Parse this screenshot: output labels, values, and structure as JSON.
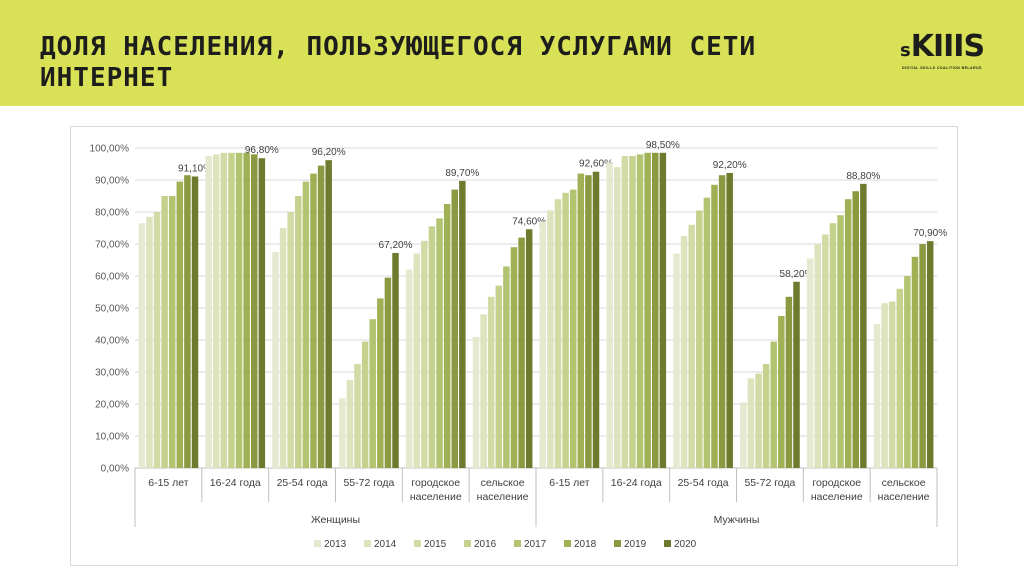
{
  "header": {
    "title": "ДОЛЯ НАСЕЛЕНИЯ, ПОЛЬЗУЮЩЕГОСЯ УСЛУГАМИ СЕТИ ИНТЕРНЕТ",
    "logo_text": "SKIIIS",
    "logo_subtitle": "DIGITAL SKILLS COALITION BELARUS",
    "banner_color": "#d9e157"
  },
  "chart_data": {
    "type": "bar",
    "groups": [
      {
        "label": "Женщины",
        "categories": [
          "6-15 лет",
          "16-24 года",
          "25-54 года",
          "55-72 года",
          "городское население",
          "сельское население"
        ]
      },
      {
        "label": "Мужчины",
        "categories": [
          "6-15 лет",
          "16-24 года",
          "25-54 года",
          "55-72 года",
          "городское население",
          "сельское население"
        ]
      }
    ],
    "series": [
      {
        "name": "2013",
        "color": "#e6e9cf",
        "values": [
          76.5,
          97.5,
          67.5,
          21.8,
          62.0,
          41.0,
          77.0,
          95.5,
          67.0,
          20.5,
          65.5,
          45.0
        ]
      },
      {
        "name": "2014",
        "color": "#dde3bc",
        "values": [
          78.5,
          98.0,
          75.0,
          27.5,
          67.0,
          48.0,
          80.5,
          94.0,
          72.5,
          28.0,
          70.0,
          51.5
        ]
      },
      {
        "name": "2015",
        "color": "#d2dba6",
        "values": [
          80.0,
          98.5,
          80.0,
          32.5,
          71.0,
          53.5,
          84.0,
          97.5,
          76.0,
          29.5,
          73.0,
          52.0
        ]
      },
      {
        "name": "2016",
        "color": "#c5d28e",
        "values": [
          85.0,
          98.5,
          85.0,
          39.5,
          75.5,
          57.0,
          86.0,
          97.5,
          80.5,
          32.5,
          76.5,
          56.0
        ]
      },
      {
        "name": "2017",
        "color": "#b3c470",
        "values": [
          85.0,
          98.5,
          89.5,
          46.5,
          78.0,
          63.0,
          87.0,
          98.0,
          84.5,
          39.5,
          79.0,
          60.0
        ]
      },
      {
        "name": "2018",
        "color": "#9fb055",
        "values": [
          89.5,
          98.5,
          92.0,
          53.0,
          82.5,
          69.0,
          92.0,
          98.5,
          88.5,
          47.5,
          84.0,
          66.0
        ]
      },
      {
        "name": "2019",
        "color": "#8a9a40",
        "values": [
          91.5,
          98.0,
          94.5,
          59.5,
          87.0,
          72.0,
          91.5,
          98.5,
          91.5,
          53.5,
          86.5,
          70.0
        ]
      },
      {
        "name": "2020",
        "color": "#6e7a2e",
        "values": [
          91.1,
          96.8,
          96.2,
          67.2,
          89.7,
          74.6,
          92.6,
          98.5,
          92.2,
          58.2,
          88.8,
          70.9
        ]
      }
    ],
    "data_labels": [
      "91,10%",
      "96,80%",
      "96,20%",
      "67,20%",
      "89,70%",
      "74,60%",
      "92,60%",
      "98,50%",
      "92,20%",
      "58,20%",
      "88,80%",
      "70,90%"
    ],
    "y_ticks": [
      "0,00%",
      "10,00%",
      "20,00%",
      "30,00%",
      "40,00%",
      "50,00%",
      "60,00%",
      "70,00%",
      "80,00%",
      "90,00%",
      "100,00%"
    ],
    "ylim": [
      0,
      100
    ],
    "grid": true,
    "legend_position": "bottom"
  }
}
